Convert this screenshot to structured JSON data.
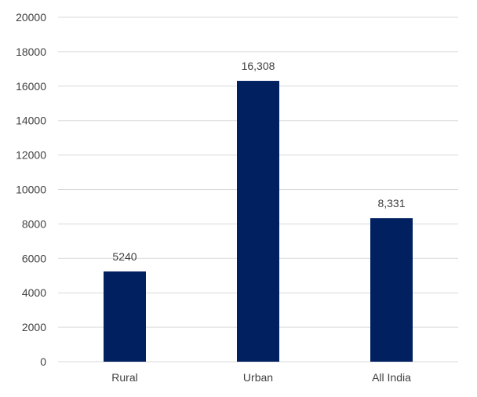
{
  "chart_data": {
    "type": "bar",
    "categories": [
      "Rural",
      "Urban",
      "All India"
    ],
    "values": [
      5240,
      16308,
      8331
    ],
    "data_labels": [
      "5240",
      "16,308",
      "8,331"
    ],
    "y_ticks": [
      "0",
      "2000",
      "4000",
      "6000",
      "8000",
      "10000",
      "12000",
      "14000",
      "16000",
      "18000",
      "20000"
    ],
    "ylim": [
      0,
      20000
    ],
    "grid": true,
    "legend": "none",
    "bar_color": "#002060"
  }
}
